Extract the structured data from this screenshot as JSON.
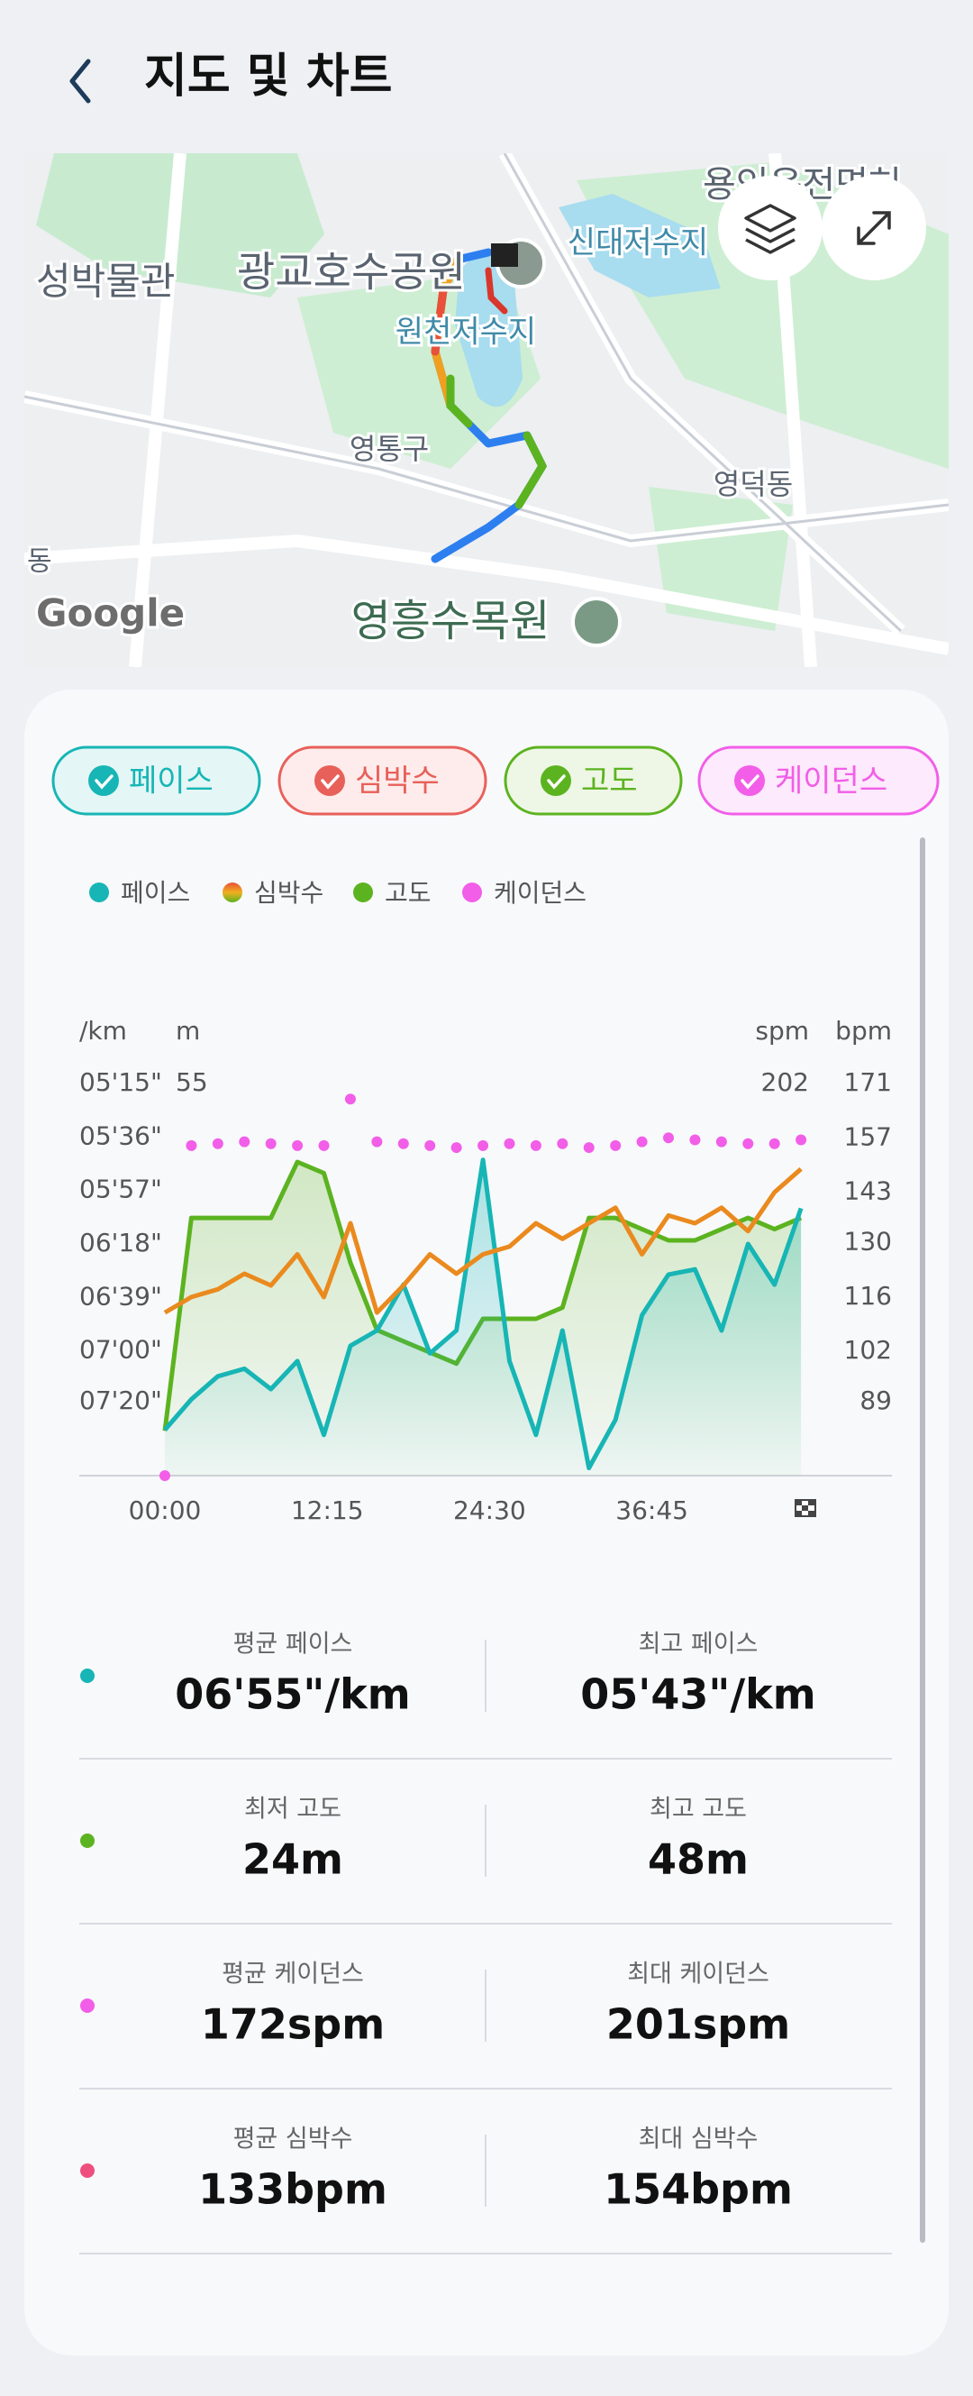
{
  "header": {
    "title": "지도 및 차트"
  },
  "map": {
    "labels": [
      "광교호수공원",
      "신대저수지",
      "원천저수지",
      "영통구",
      "영덕동",
      "영흥수목원",
      "성박물관",
      "용인운전면허",
      "동"
    ],
    "attribution": "Google"
  },
  "filters": [
    "페이스",
    "심박수",
    "고도",
    "케이던스"
  ],
  "chart": {
    "type": "line",
    "x": [
      0,
      2,
      4,
      6,
      8,
      10,
      12,
      14,
      16,
      18,
      20,
      22,
      24,
      26,
      28,
      30,
      32,
      34,
      36,
      38,
      40,
      42,
      44,
      46,
      48
    ],
    "xlim": [
      0,
      48.4
    ],
    "xticks": [
      {
        "value": 0,
        "label": "00:00"
      },
      {
        "value": 12.25,
        "label": "12:15"
      },
      {
        "value": 24.5,
        "label": "24:30"
      },
      {
        "value": 36.75,
        "label": "36:45"
      }
    ],
    "series": [
      {
        "name": "페이스",
        "unit": "/km",
        "color": "#17b5b5",
        "kind": "area",
        "values": [
          451,
          439,
          430,
          427,
          435,
          424,
          453,
          418,
          412,
          394,
          421,
          412,
          345,
          424,
          453,
          412,
          466,
          447,
          406,
          390,
          388,
          412,
          378,
          394,
          364
        ],
        "ylim": [
          469,
          315
        ],
        "yticks": [
          {
            "value": 315,
            "label": "05'15\""
          },
          {
            "value": 336,
            "label": "05'36\""
          },
          {
            "value": 357,
            "label": "05'57\""
          },
          {
            "value": 378,
            "label": "06'18\""
          },
          {
            "value": 399,
            "label": "06'39\""
          },
          {
            "value": 420,
            "label": "07'00\""
          },
          {
            "value": 440,
            "label": "07'20\""
          }
        ]
      },
      {
        "name": "심박수",
        "unit": "bpm",
        "color": "#ea8a1e",
        "kind": "line",
        "values": [
          112,
          116,
          118,
          122,
          119,
          127,
          116,
          135,
          112,
          119,
          127,
          122,
          127,
          129,
          135,
          131,
          135,
          139,
          127,
          137,
          135,
          139,
          133,
          143,
          149
        ],
        "ylim": [
          70,
          171
        ],
        "yticks": [
          171,
          157,
          143,
          130,
          116,
          102,
          89
        ]
      },
      {
        "name": "고도",
        "unit": "m",
        "color": "#5cb320",
        "kind": "area",
        "values": [
          24,
          43,
          43,
          43,
          43,
          48,
          47,
          39,
          33,
          32,
          31,
          30,
          34,
          34,
          34,
          35,
          43,
          43,
          42,
          41,
          41,
          42,
          43,
          42,
          43
        ],
        "ylim": [
          20,
          55
        ],
        "yticks": [
          55
        ]
      },
      {
        "name": "케이던스",
        "unit": "spm",
        "color": "#f25ee8",
        "kind": "dots",
        "values": [
          0,
          170,
          171,
          172,
          171,
          170,
          170,
          194,
          172,
          171,
          170,
          169,
          170,
          171,
          170,
          171,
          169,
          170,
          172,
          174,
          173,
          172,
          171,
          171,
          173
        ],
        "ylim": [
          0,
          202
        ],
        "yticks": [
          202
        ]
      }
    ]
  },
  "stats": [
    {
      "color": "#17b5b5",
      "items": [
        {
          "label": "평균 페이스",
          "value": "06'55\"/km"
        },
        {
          "label": "최고 페이스",
          "value": "05'43\"/km"
        }
      ]
    },
    {
      "color": "#5cb320",
      "items": [
        {
          "label": "최저 고도",
          "value": "24m"
        },
        {
          "label": "최고 고도",
          "value": "48m"
        }
      ]
    },
    {
      "color": "#f25ee8",
      "items": [
        {
          "label": "평균 케이던스",
          "value": "172spm"
        },
        {
          "label": "최대 케이던스",
          "value": "201spm"
        }
      ]
    },
    {
      "color": "#ef4f7f",
      "items": [
        {
          "label": "평균 심박수",
          "value": "133bpm"
        },
        {
          "label": "최대 심박수",
          "value": "154bpm"
        }
      ]
    }
  ]
}
